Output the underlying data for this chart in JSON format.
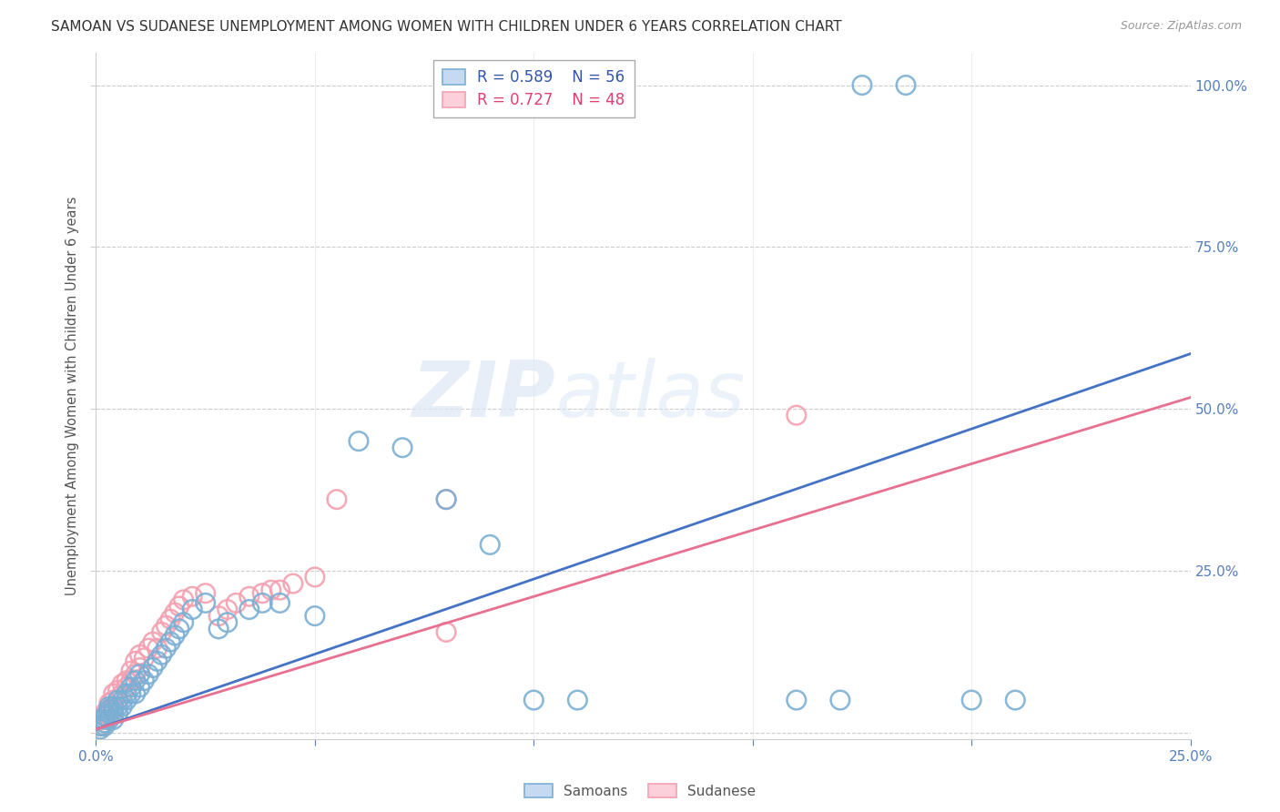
{
  "title": "SAMOAN VS SUDANESE UNEMPLOYMENT AMONG WOMEN WITH CHILDREN UNDER 6 YEARS CORRELATION CHART",
  "source": "Source: ZipAtlas.com",
  "ylabel": "Unemployment Among Women with Children Under 6 years",
  "xlim": [
    0.0,
    0.25
  ],
  "ylim": [
    -0.01,
    1.05
  ],
  "samoan_color": "#7BAFD4",
  "sudanese_color": "#F4A0B0",
  "samoan_line_color": "#4472C4",
  "sudanese_line_color": "#E87090",
  "samoan_R": 0.589,
  "samoan_N": 56,
  "sudanese_R": 0.727,
  "sudanese_N": 48,
  "samoan_slope": 2.32,
  "samoan_intercept": 0.005,
  "sudanese_slope": 2.05,
  "sudanese_intercept": 0.005,
  "background_color": "#ffffff",
  "grid_color": "#cccccc",
  "samoan_x": [
    0.001,
    0.001,
    0.002,
    0.002,
    0.002,
    0.002,
    0.003,
    0.003,
    0.003,
    0.003,
    0.004,
    0.004,
    0.004,
    0.005,
    0.005,
    0.005,
    0.006,
    0.006,
    0.007,
    0.007,
    0.008,
    0.008,
    0.009,
    0.009,
    0.01,
    0.01,
    0.011,
    0.012,
    0.013,
    0.014,
    0.015,
    0.016,
    0.017,
    0.018,
    0.019,
    0.02,
    0.022,
    0.025,
    0.028,
    0.03,
    0.035,
    0.038,
    0.042,
    0.05,
    0.06,
    0.07,
    0.08,
    0.09,
    0.1,
    0.11,
    0.16,
    0.17,
    0.2,
    0.21,
    0.175,
    0.185
  ],
  "samoan_y": [
    0.005,
    0.01,
    0.01,
    0.015,
    0.02,
    0.025,
    0.02,
    0.03,
    0.035,
    0.04,
    0.02,
    0.03,
    0.04,
    0.03,
    0.04,
    0.05,
    0.04,
    0.05,
    0.05,
    0.06,
    0.06,
    0.07,
    0.06,
    0.08,
    0.07,
    0.09,
    0.08,
    0.09,
    0.1,
    0.11,
    0.12,
    0.13,
    0.14,
    0.15,
    0.16,
    0.17,
    0.19,
    0.2,
    0.16,
    0.17,
    0.19,
    0.2,
    0.2,
    0.18,
    0.45,
    0.44,
    0.36,
    0.29,
    0.05,
    0.05,
    0.05,
    0.05,
    0.05,
    0.05,
    1.0,
    1.0
  ],
  "sudanese_x": [
    0.001,
    0.001,
    0.002,
    0.002,
    0.002,
    0.003,
    0.003,
    0.003,
    0.004,
    0.004,
    0.004,
    0.005,
    0.005,
    0.006,
    0.006,
    0.007,
    0.007,
    0.008,
    0.008,
    0.009,
    0.009,
    0.01,
    0.01,
    0.011,
    0.012,
    0.013,
    0.014,
    0.015,
    0.016,
    0.017,
    0.018,
    0.019,
    0.02,
    0.022,
    0.025,
    0.028,
    0.03,
    0.032,
    0.035,
    0.038,
    0.04,
    0.042,
    0.045,
    0.05,
    0.055,
    0.08,
    0.16,
    0.08
  ],
  "sudanese_y": [
    0.01,
    0.02,
    0.015,
    0.025,
    0.03,
    0.025,
    0.035,
    0.045,
    0.035,
    0.05,
    0.06,
    0.05,
    0.065,
    0.06,
    0.075,
    0.07,
    0.08,
    0.08,
    0.095,
    0.09,
    0.11,
    0.1,
    0.12,
    0.115,
    0.13,
    0.14,
    0.13,
    0.155,
    0.165,
    0.175,
    0.185,
    0.195,
    0.205,
    0.21,
    0.215,
    0.18,
    0.19,
    0.2,
    0.21,
    0.215,
    0.22,
    0.22,
    0.23,
    0.24,
    0.36,
    0.36,
    0.49,
    0.155
  ]
}
